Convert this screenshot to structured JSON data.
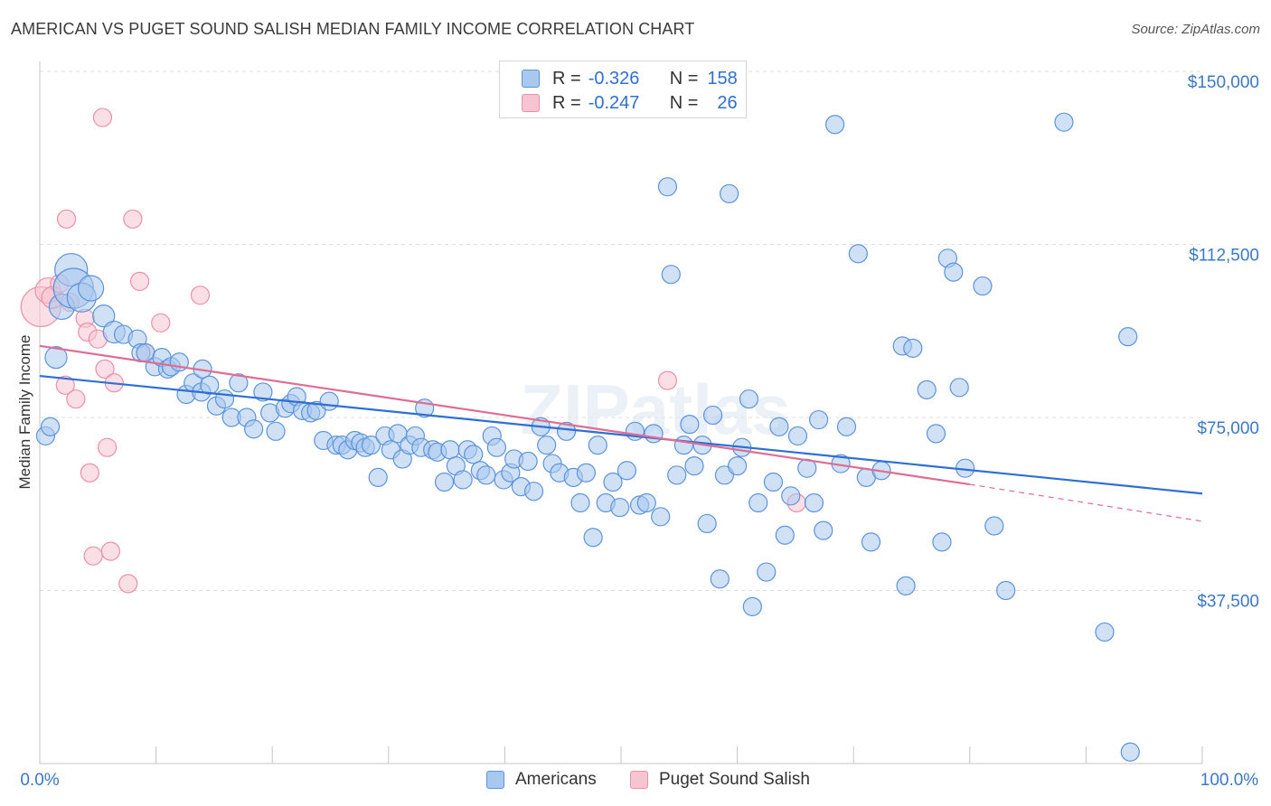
{
  "title": "AMERICAN VS PUGET SOUND SALISH MEDIAN FAMILY INCOME CORRELATION CHART",
  "source": "Source: ZipAtlas.com",
  "watermark": "ZIPatlas",
  "colors": {
    "americans_fill": "#a9c8ef",
    "americans_stroke": "#5b93dc",
    "americans_line": "#2d6fd3",
    "salish_fill": "#f7c4d1",
    "salish_stroke": "#ec8fa8",
    "salish_line": "#e06c93",
    "axis_label": "#3a78c8"
  },
  "legend": {
    "rows": [
      {
        "r_label": "R =",
        "r_value": "-0.326",
        "n_label": "N =",
        "n_value": "158"
      },
      {
        "r_label": "R =",
        "r_value": "-0.247",
        "n_label": "N =",
        "n_value": "26"
      }
    ]
  },
  "bottom_legend": [
    "Americans",
    "Puget Sound Salish"
  ],
  "chart_data": {
    "type": "scatter",
    "title": "AMERICAN VS PUGET SOUND SALISH MEDIAN FAMILY INCOME CORRELATION CHART",
    "xlabel": "",
    "ylabel": "Median Family Income",
    "xlim": [
      0,
      100
    ],
    "ylim": [
      0,
      150000
    ],
    "x_tick_labels": [
      "0.0%",
      "100.0%"
    ],
    "y_tick_values": [
      37500,
      75000,
      112500,
      150000
    ],
    "y_tick_labels": [
      "$37,500",
      "$75,000",
      "$112,500",
      "$150,000"
    ],
    "grid": true,
    "legend_position": "top-center",
    "series": [
      {
        "name": "Americans",
        "r": -0.326,
        "n": 158,
        "trend": {
          "x": [
            0,
            100
          ],
          "y": [
            84000,
            58500
          ]
        },
        "points": [
          [
            0.5,
            71000,
            10
          ],
          [
            0.9,
            73000,
            10
          ],
          [
            1.4,
            88000,
            12
          ],
          [
            1.9,
            99000,
            14
          ],
          [
            2.7,
            107000,
            18
          ],
          [
            2.9,
            103000,
            22
          ],
          [
            3.6,
            101000,
            16
          ],
          [
            4.4,
            103000,
            14
          ],
          [
            5.5,
            97000,
            12
          ],
          [
            6.4,
            93500,
            12
          ],
          [
            7.2,
            93000,
            10
          ],
          [
            8.4,
            92000,
            10
          ],
          [
            8.7,
            89000,
            10
          ],
          [
            9.1,
            89000,
            10
          ],
          [
            9.9,
            86000,
            10
          ],
          [
            10.5,
            88000,
            10
          ],
          [
            11.0,
            85500,
            10
          ],
          [
            11.3,
            86000,
            10
          ],
          [
            12.0,
            87000,
            10
          ],
          [
            12.6,
            80000,
            10
          ],
          [
            13.2,
            82500,
            10
          ],
          [
            13.9,
            80500,
            10
          ],
          [
            14.0,
            85500,
            10
          ],
          [
            14.6,
            82000,
            10
          ],
          [
            15.2,
            77500,
            10
          ],
          [
            15.9,
            79000,
            10
          ],
          [
            16.5,
            75000,
            10
          ],
          [
            17.1,
            82500,
            10
          ],
          [
            17.8,
            75000,
            10
          ],
          [
            18.4,
            72500,
            10
          ],
          [
            19.2,
            80500,
            10
          ],
          [
            19.8,
            76000,
            10
          ],
          [
            20.3,
            72000,
            10
          ],
          [
            21.1,
            77000,
            10
          ],
          [
            21.6,
            78000,
            10
          ],
          [
            22.1,
            79500,
            10
          ],
          [
            22.6,
            76500,
            10
          ],
          [
            23.3,
            76000,
            10
          ],
          [
            23.8,
            76500,
            10
          ],
          [
            24.4,
            70000,
            10
          ],
          [
            24.9,
            78500,
            10
          ],
          [
            25.5,
            69000,
            10
          ],
          [
            26.0,
            69000,
            10
          ],
          [
            26.5,
            68000,
            10
          ],
          [
            27.1,
            70000,
            10
          ],
          [
            27.6,
            69500,
            10
          ],
          [
            28.0,
            68500,
            10
          ],
          [
            28.5,
            69000,
            10
          ],
          [
            29.1,
            62000,
            10
          ],
          [
            29.7,
            71000,
            10
          ],
          [
            30.2,
            68000,
            10
          ],
          [
            30.8,
            71500,
            10
          ],
          [
            31.2,
            66000,
            10
          ],
          [
            31.8,
            69000,
            10
          ],
          [
            32.3,
            71000,
            10
          ],
          [
            32.8,
            68500,
            10
          ],
          [
            33.1,
            77000,
            10
          ],
          [
            33.8,
            68000,
            10
          ],
          [
            34.2,
            67500,
            10
          ],
          [
            34.8,
            61000,
            10
          ],
          [
            35.3,
            68000,
            10
          ],
          [
            35.8,
            64500,
            10
          ],
          [
            36.4,
            61500,
            10
          ],
          [
            36.8,
            68000,
            10
          ],
          [
            37.3,
            67000,
            10
          ],
          [
            37.9,
            63500,
            10
          ],
          [
            38.4,
            62500,
            10
          ],
          [
            38.9,
            71000,
            10
          ],
          [
            39.3,
            68500,
            10
          ],
          [
            39.9,
            61500,
            10
          ],
          [
            40.5,
            63000,
            10
          ],
          [
            40.8,
            66000,
            10
          ],
          [
            41.4,
            60000,
            10
          ],
          [
            42.0,
            65500,
            10
          ],
          [
            42.5,
            59000,
            10
          ],
          [
            43.1,
            73000,
            10
          ],
          [
            43.6,
            69000,
            10
          ],
          [
            44.1,
            65000,
            10
          ],
          [
            44.7,
            63000,
            10
          ],
          [
            45.3,
            72000,
            10
          ],
          [
            45.9,
            62000,
            10
          ],
          [
            46.5,
            56500,
            10
          ],
          [
            47.0,
            63000,
            10
          ],
          [
            47.6,
            49000,
            10
          ],
          [
            48.0,
            69000,
            10
          ],
          [
            48.7,
            56500,
            10
          ],
          [
            49.3,
            61000,
            10
          ],
          [
            49.9,
            55500,
            10
          ],
          [
            50.5,
            63500,
            10
          ],
          [
            51.2,
            72000,
            10
          ],
          [
            51.6,
            56000,
            10
          ],
          [
            52.2,
            56500,
            10
          ],
          [
            52.8,
            71500,
            10
          ],
          [
            53.4,
            53500,
            10
          ],
          [
            54.0,
            125000,
            10
          ],
          [
            54.3,
            106000,
            10
          ],
          [
            54.8,
            62500,
            10
          ],
          [
            55.4,
            69000,
            10
          ],
          [
            55.9,
            73500,
            10
          ],
          [
            56.3,
            64500,
            10
          ],
          [
            57.0,
            69000,
            10
          ],
          [
            57.4,
            52000,
            10
          ],
          [
            57.9,
            75500,
            10
          ],
          [
            58.5,
            40000,
            10
          ],
          [
            58.9,
            62500,
            10
          ],
          [
            59.3,
            123500,
            10
          ],
          [
            60.0,
            64500,
            10
          ],
          [
            60.4,
            68500,
            10
          ],
          [
            61.0,
            79000,
            10
          ],
          [
            61.3,
            34000,
            10
          ],
          [
            61.8,
            56500,
            10
          ],
          [
            62.5,
            41500,
            10
          ],
          [
            63.1,
            61000,
            10
          ],
          [
            63.6,
            73000,
            10
          ],
          [
            64.1,
            49500,
            10
          ],
          [
            64.6,
            58000,
            10
          ],
          [
            65.2,
            71000,
            10
          ],
          [
            66.0,
            64000,
            10
          ],
          [
            66.6,
            56500,
            10
          ],
          [
            67.0,
            74500,
            10
          ],
          [
            67.4,
            50500,
            10
          ],
          [
            68.4,
            138500,
            10
          ],
          [
            68.9,
            65000,
            10
          ],
          [
            69.4,
            73000,
            10
          ],
          [
            70.4,
            110500,
            10
          ],
          [
            71.1,
            62000,
            10
          ],
          [
            71.5,
            48000,
            10
          ],
          [
            72.4,
            63500,
            10
          ],
          [
            74.2,
            90500,
            10
          ],
          [
            74.5,
            38500,
            10
          ],
          [
            75.1,
            90000,
            10
          ],
          [
            76.3,
            81000,
            10
          ],
          [
            77.1,
            71500,
            10
          ],
          [
            77.6,
            48000,
            10
          ],
          [
            78.1,
            109500,
            10
          ],
          [
            78.6,
            106500,
            10
          ],
          [
            79.1,
            81500,
            10
          ],
          [
            79.6,
            64000,
            10
          ],
          [
            81.1,
            103500,
            10
          ],
          [
            82.1,
            51500,
            10
          ],
          [
            83.1,
            37500,
            10
          ],
          [
            88.1,
            139000,
            10
          ],
          [
            91.6,
            28500,
            10
          ],
          [
            93.6,
            92500,
            10
          ],
          [
            93.8,
            2500,
            10
          ]
        ]
      },
      {
        "name": "Puget Sound Salish",
        "r": -0.247,
        "n": 26,
        "trend": {
          "x": [
            0,
            80
          ],
          "y": [
            90500,
            60500
          ]
        },
        "trend_dashed": {
          "x": [
            80,
            100
          ],
          "y": [
            60500,
            52500
          ]
        },
        "points": [
          [
            0.1,
            99000,
            22
          ],
          [
            0.7,
            102500,
            14
          ],
          [
            1.1,
            101000,
            12
          ],
          [
            1.7,
            104000,
            10
          ],
          [
            2.2,
            82000,
            10
          ],
          [
            2.3,
            118000,
            10
          ],
          [
            2.6,
            100000,
            10
          ],
          [
            3.1,
            79000,
            10
          ],
          [
            3.9,
            96500,
            10
          ],
          [
            4.1,
            93500,
            10
          ],
          [
            4.3,
            63000,
            10
          ],
          [
            4.6,
            45000,
            10
          ],
          [
            5.0,
            92000,
            10
          ],
          [
            5.4,
            140000,
            10
          ],
          [
            5.6,
            85500,
            10
          ],
          [
            5.8,
            68500,
            10
          ],
          [
            6.1,
            46000,
            10
          ],
          [
            6.4,
            82500,
            10
          ],
          [
            7.6,
            39000,
            10
          ],
          [
            8.0,
            118000,
            10
          ],
          [
            8.6,
            104500,
            10
          ],
          [
            9.1,
            89000,
            10
          ],
          [
            10.4,
            95500,
            10
          ],
          [
            13.8,
            101500,
            10
          ],
          [
            54.0,
            83000,
            10
          ],
          [
            65.1,
            56500,
            10
          ]
        ]
      }
    ]
  }
}
